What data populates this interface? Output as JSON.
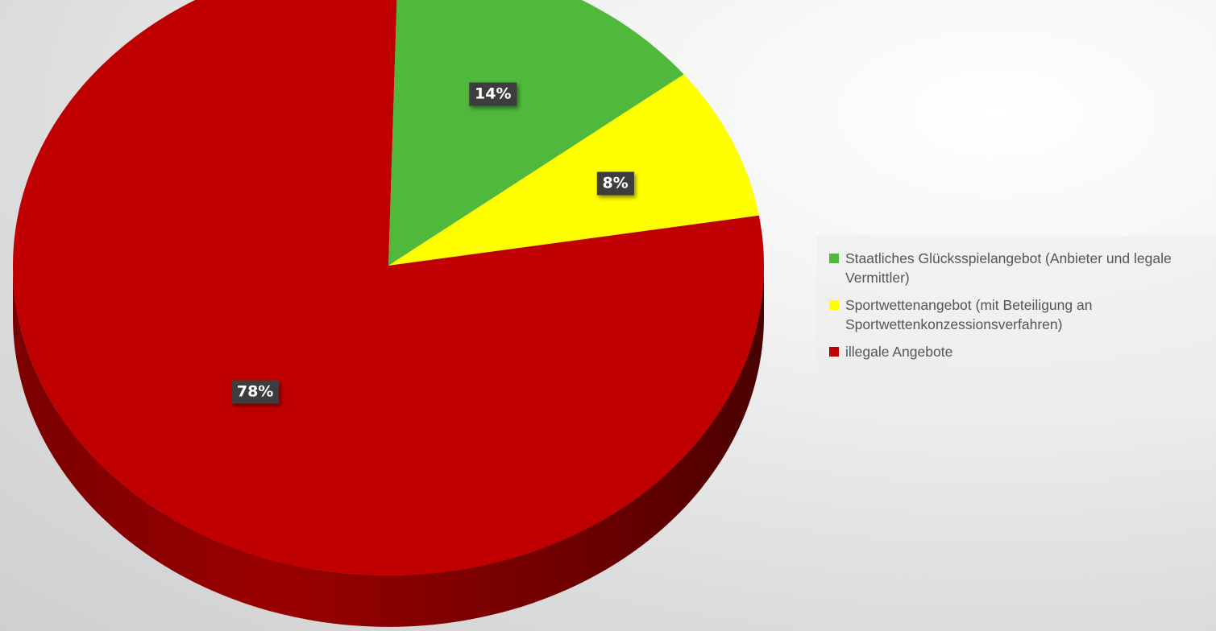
{
  "chart_data": {
    "type": "pie",
    "title": "",
    "categories": [
      "Staatliches Glücksspielangebot (Anbieter und legale Vermittler)",
      "Sportwettenangebot (mit Beteiligung an Sportwettenkonzessionsverfahren)",
      "illegale Angebote"
    ],
    "values": [
      14,
      8,
      78
    ],
    "data_labels": [
      "14%",
      "8%",
      "78%"
    ],
    "colors": [
      "#50b93c",
      "#ffff00",
      "#c00000"
    ],
    "style": "3d",
    "legend_position": "right"
  }
}
